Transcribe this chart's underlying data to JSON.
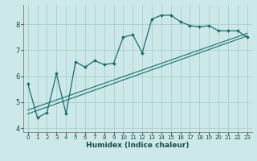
{
  "xlabel": "Humidex (Indice chaleur)",
  "bg_color": "#cce8e8",
  "grid_color": "#aacece",
  "line_color": "#1a6e6e",
  "main_x": [
    0,
    1,
    2,
    3,
    4,
    5,
    6,
    7,
    8,
    9,
    10,
    11,
    12,
    13,
    14,
    15,
    16,
    17,
    18,
    19,
    20,
    21,
    22,
    23
  ],
  "main_y": [
    5.7,
    4.4,
    4.6,
    6.1,
    4.55,
    6.55,
    6.35,
    6.6,
    6.45,
    6.5,
    7.5,
    7.6,
    6.9,
    8.2,
    8.35,
    8.35,
    8.1,
    7.95,
    7.9,
    7.95,
    7.75,
    7.75,
    7.75,
    7.5
  ],
  "line1_x": [
    0,
    23
  ],
  "line1_y": [
    4.55,
    7.55
  ],
  "line2_x": [
    0,
    23
  ],
  "line2_y": [
    4.7,
    7.65
  ],
  "xlim": [
    -0.5,
    23.5
  ],
  "ylim": [
    3.85,
    8.75
  ],
  "xticks": [
    0,
    1,
    2,
    3,
    4,
    5,
    6,
    7,
    8,
    9,
    10,
    11,
    12,
    13,
    14,
    15,
    16,
    17,
    18,
    19,
    20,
    21,
    22,
    23
  ],
  "yticks": [
    4,
    5,
    6,
    7,
    8
  ],
  "xlabel_fontsize": 6.5,
  "xlabel_fontweight": "bold",
  "tick_fontsize_x": 5.0,
  "tick_fontsize_y": 6.0
}
